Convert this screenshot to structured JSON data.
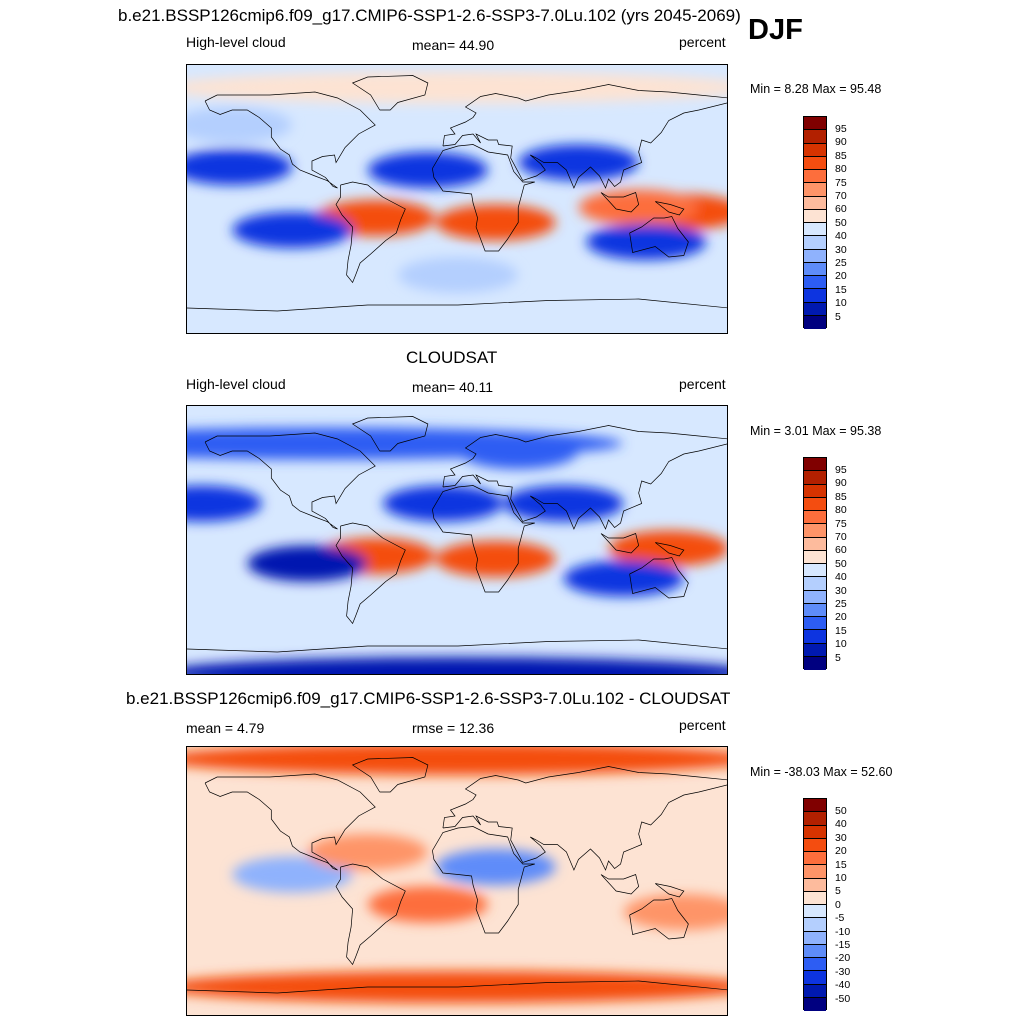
{
  "season": "DJF",
  "panels": [
    {
      "title": "b.e21.BSSP126cmip6.f09_g17.CMIP6-SSP1-2.6-SSP3-7.0Lu.102 (yrs 2045-2069)",
      "left": "High-level cloud",
      "center": "mean=  44.90",
      "right": "percent",
      "minmax": "Min =   8.28 Max =  95.48",
      "colorbar_ticks": [
        "95",
        "90",
        "85",
        "80",
        "75",
        "70",
        "60",
        "50",
        "40",
        "30",
        "25",
        "20",
        "15",
        "10",
        "5"
      ]
    },
    {
      "title": "CLOUDSAT",
      "left": "High-level cloud",
      "center": "mean=  40.11",
      "right": "percent",
      "minmax": "Min =   3.01 Max =  95.38",
      "colorbar_ticks": [
        "95",
        "90",
        "85",
        "80",
        "75",
        "70",
        "60",
        "50",
        "40",
        "30",
        "25",
        "20",
        "15",
        "10",
        "5"
      ]
    },
    {
      "title": "b.e21.BSSP126cmip6.f09_g17.CMIP6-SSP1-2.6-SSP3-7.0Lu.102 - CLOUDSAT",
      "left": "mean =   4.79",
      "center": "rmse =  12.36",
      "right": "percent",
      "minmax": "Min = -38.03 Max =  52.60",
      "colorbar_ticks": [
        "50",
        "40",
        "30",
        "20",
        "15",
        "10",
        "5",
        "0",
        "-5",
        "-10",
        "-15",
        "-20",
        "-30",
        "-40",
        "-50"
      ]
    }
  ],
  "colors": {
    "scale": [
      "#800000",
      "#b22000",
      "#d63300",
      "#f44d10",
      "#fd6e3c",
      "#fe9468",
      "#fdbb9d",
      "#fde3d3",
      "#d7e8ff",
      "#b4cffe",
      "#8fb2fd",
      "#5e8cf9",
      "#2d5df3",
      "#0d34e0",
      "#0019b0",
      "#000080"
    ]
  },
  "chart_data": [
    {
      "type": "heatmap",
      "title": "b.e21.BSSP126cmip6.f09_g17.CMIP6-SSP1-2.6-SSP3-7.0Lu.102 (yrs 2045-2069)",
      "variable": "High-level cloud",
      "units": "percent",
      "mean": 44.9,
      "min": 8.28,
      "max": 95.48,
      "levels": [
        5,
        10,
        15,
        20,
        25,
        30,
        40,
        50,
        60,
        70,
        75,
        80,
        85,
        90,
        95
      ],
      "features": [
        {
          "lon": 150,
          "lat": -8,
          "value": 85
        },
        {
          "lon": 120,
          "lat": -5,
          "value": 80
        },
        {
          "lon": 25,
          "lat": -15,
          "value": 85
        },
        {
          "lon": -55,
          "lat": -12,
          "value": 85
        },
        {
          "lon": -20,
          "lat": 20,
          "value": 12
        },
        {
          "lon": 80,
          "lat": 25,
          "value": 15
        },
        {
          "lon": -150,
          "lat": 22,
          "value": 12
        },
        {
          "lon": -110,
          "lat": -20,
          "value": 12
        },
        {
          "lon": 125,
          "lat": -28,
          "value": 12
        },
        {
          "lon": 0,
          "lat": 75,
          "value": 60
        },
        {
          "lon": -150,
          "lat": 50,
          "value": 40
        },
        {
          "lon": 0,
          "lat": -50,
          "value": 40
        }
      ]
    },
    {
      "type": "heatmap",
      "title": "CLOUDSAT",
      "variable": "High-level cloud",
      "units": "percent",
      "mean": 40.11,
      "min": 3.01,
      "max": 95.38,
      "levels": [
        5,
        10,
        15,
        20,
        25,
        30,
        40,
        50,
        60,
        70,
        75,
        80,
        85,
        90,
        95
      ],
      "features": [
        {
          "lon": 140,
          "lat": -5,
          "value": 85
        },
        {
          "lon": 25,
          "lat": -12,
          "value": 85
        },
        {
          "lon": -55,
          "lat": -10,
          "value": 85
        },
        {
          "lon": -10,
          "lat": 25,
          "value": 12
        },
        {
          "lon": 70,
          "lat": 25,
          "value": 15
        },
        {
          "lon": -170,
          "lat": 25,
          "value": 15
        },
        {
          "lon": -100,
          "lat": -15,
          "value": 10
        },
        {
          "lon": 110,
          "lat": -25,
          "value": 15
        },
        {
          "lon": 40,
          "lat": 60,
          "value": 20
        },
        {
          "lon": -90,
          "lat": 65,
          "value": 20
        },
        {
          "lon": 0,
          "lat": -88,
          "value": 10
        }
      ]
    },
    {
      "type": "heatmap",
      "title": "b.e21.BSSP126cmip6.f09_g17.CMIP6-SSP1-2.6-SSP3-7.0Lu.102 - CLOUDSAT",
      "variable": "",
      "units": "percent",
      "mean": 4.79,
      "rmse": 12.36,
      "min": -38.03,
      "max": 52.6,
      "levels": [
        -50,
        -40,
        -30,
        -20,
        -15,
        -10,
        -5,
        0,
        5,
        10,
        15,
        20,
        30,
        40,
        50
      ],
      "features": [
        {
          "lon": 0,
          "lat": 82,
          "value": 25
        },
        {
          "lon": 0,
          "lat": -70,
          "value": 30
        },
        {
          "lon": 25,
          "lat": 10,
          "value": -15
        },
        {
          "lon": -110,
          "lat": 5,
          "value": -10
        },
        {
          "lon": -20,
          "lat": -15,
          "value": 20
        },
        {
          "lon": 150,
          "lat": -20,
          "value": 15
        },
        {
          "lon": -60,
          "lat": 20,
          "value": 15
        }
      ]
    }
  ]
}
